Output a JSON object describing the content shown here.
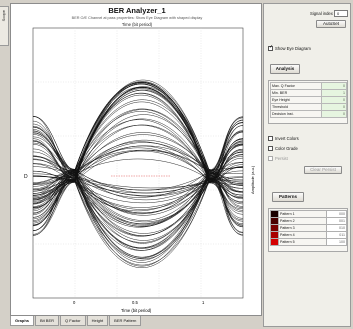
{
  "window": {
    "left_tab_label": "Scope"
  },
  "plot": {
    "title": "BER Analyzer_1",
    "subtitle": "BER O/E Channel at pass properties: Show Eye Diagram with shaped display",
    "top_axis_label": "Time (bit period)",
    "bottom_axis_label": "Time (bit period)",
    "right_axis_label": "Amplitude (a.u.)",
    "x_ticks": [
      "0",
      "0.5",
      "1"
    ],
    "left_marker": "D"
  },
  "bottom_tabs": [
    "Graphs",
    "Bit BER",
    "Q Factor",
    "Height",
    "BER Pattern"
  ],
  "side": {
    "signal_index_label": "Signal index",
    "signal_index_value": "0",
    "autoset_label": "AutoSet",
    "show_eye_label": "Show Eye Diagram",
    "show_eye_checked": true,
    "analysis_button": "Analysis",
    "metrics": [
      {
        "label": "Max. Q Factor",
        "value": "0"
      },
      {
        "label": "Min. BER",
        "value": "1"
      },
      {
        "label": "Eye Height",
        "value": "0"
      },
      {
        "label": "Threshold",
        "value": "0"
      },
      {
        "label": "Decision Inst.",
        "value": "0"
      }
    ],
    "invert_colors_label": "Invert Colors",
    "color_grade_label": "Color Grade",
    "persist_label": "Persist",
    "clear_label": "Clear Persist",
    "patterns_button": "Patterns",
    "patterns": [
      {
        "label": "Pattern 1",
        "value": "000",
        "color": "#1a0000"
      },
      {
        "label": "Pattern 2",
        "value": "001",
        "color": "#4a0000"
      },
      {
        "label": "Pattern 3",
        "value": "010",
        "color": "#7a0000"
      },
      {
        "label": "Pattern 4",
        "value": "011",
        "color": "#a80000"
      },
      {
        "label": "Pattern 5",
        "value": "100",
        "color": "#d40000"
      }
    ]
  }
}
